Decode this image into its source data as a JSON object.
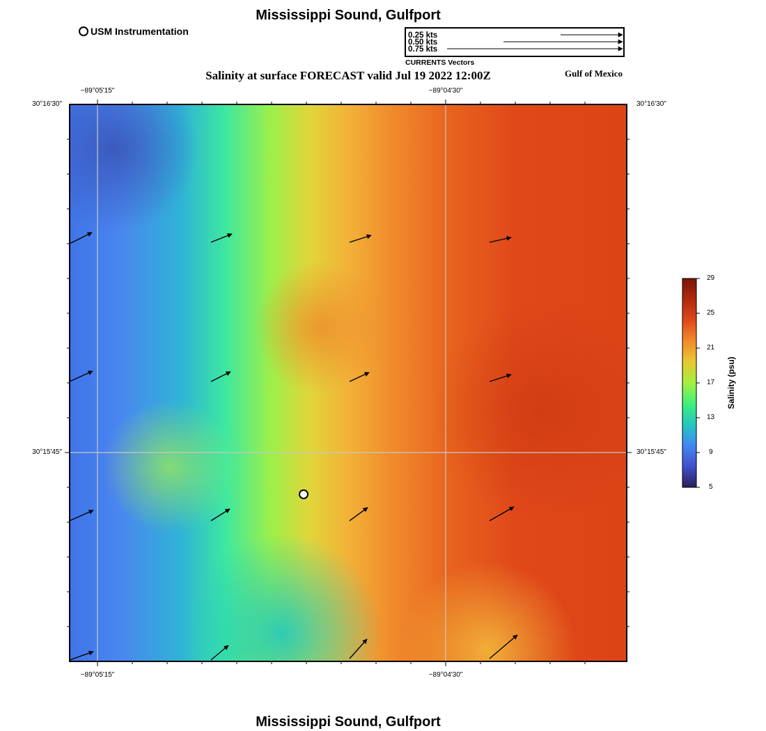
{
  "title": "Mississippi Sound, Gulfport",
  "bottom_title": "Mississippi Sound, Gulfport",
  "subtitle": "Salinity at surface FORECAST valid Jul 19 2022 12:00Z",
  "region_label": "Gulf of Mexico",
  "instrument_legend": {
    "label": "USM Instrumentation",
    "icon": "station-circle-icon"
  },
  "vector_legend": {
    "title": "CURRENTS Vectors",
    "entries": [
      {
        "label": "0.25 kts",
        "speed": 0.25
      },
      {
        "label": "0.50 kts",
        "speed": 0.5
      },
      {
        "label": "0.75 kts",
        "speed": 0.75
      }
    ]
  },
  "axes": {
    "x_ticks": [
      "−89°05'15\"",
      "−89°04'30\""
    ],
    "y_ticks": [
      "30°16'30\"",
      "30°15'45\""
    ]
  },
  "colorbar": {
    "title": "Salinity (psu)",
    "ticks": [
      "29",
      "25",
      "21",
      "17",
      "13",
      "9",
      "5"
    ],
    "min": 5,
    "max": 29,
    "colors": [
      "#2c1e5c",
      "#3f50c8",
      "#4287f5",
      "#24c8c0",
      "#3ef07a",
      "#a4f040",
      "#e8c832",
      "#f28b2a",
      "#e0481a",
      "#b02a0f",
      "#7a1408"
    ]
  },
  "station": {
    "name": "USM Instrumentation"
  },
  "map": {
    "projection": "lon/lat",
    "grid": true
  }
}
